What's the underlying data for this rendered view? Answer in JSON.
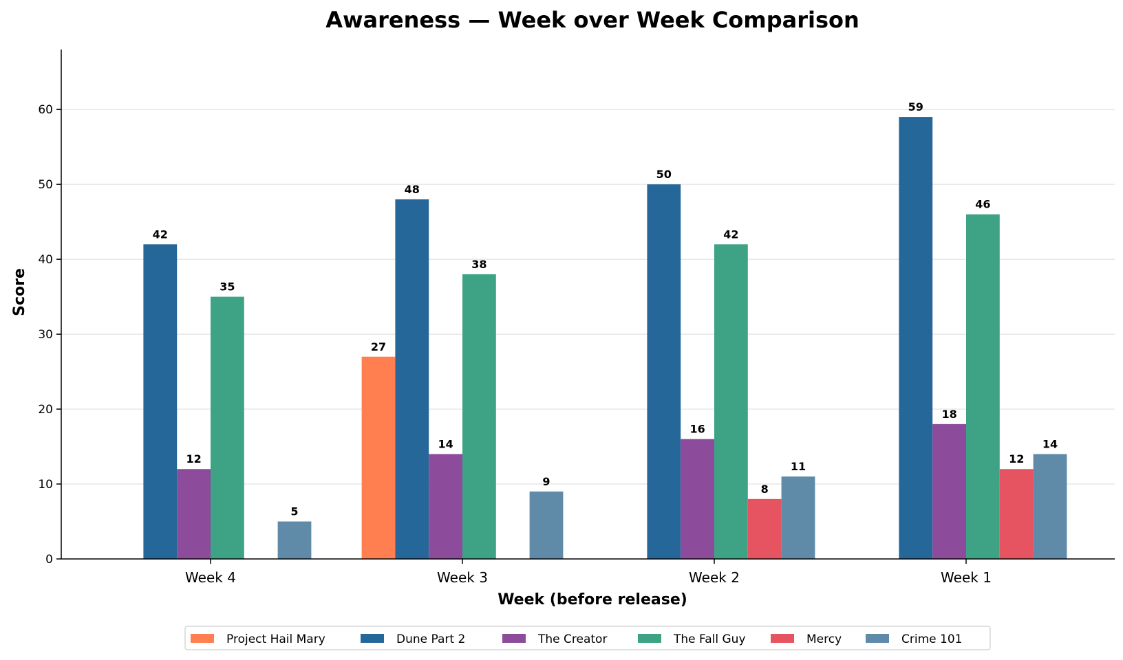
{
  "chart_data": {
    "type": "bar",
    "title": "Awareness — Week over Week Comparison",
    "xlabel": "Week (before release)",
    "ylabel": "Score",
    "ylim": [
      0,
      68
    ],
    "yticks": [
      0,
      10,
      20,
      30,
      40,
      50,
      60
    ],
    "grid": "horizontal",
    "legend_position": "bottom-center",
    "categories": [
      "Week 4",
      "Week 3",
      "Week 2",
      "Week 1"
    ],
    "series": [
      {
        "name": "Project Hail Mary",
        "color": "#ff7f50",
        "values": [
          null,
          27,
          null,
          null
        ]
      },
      {
        "name": "Dune Part 2",
        "color": "#26679a",
        "values": [
          42,
          48,
          50,
          59
        ]
      },
      {
        "name": "The Creator",
        "color": "#8d4b9b",
        "values": [
          12,
          14,
          16,
          18
        ]
      },
      {
        "name": "The Fall Guy",
        "color": "#3ea384",
        "values": [
          35,
          38,
          42,
          46
        ]
      },
      {
        "name": "Mercy",
        "color": "#e65461",
        "values": [
          null,
          null,
          8,
          12
        ]
      },
      {
        "name": "Crime 101",
        "color": "#5f8ba9",
        "values": [
          5,
          9,
          11,
          14
        ]
      }
    ]
  }
}
